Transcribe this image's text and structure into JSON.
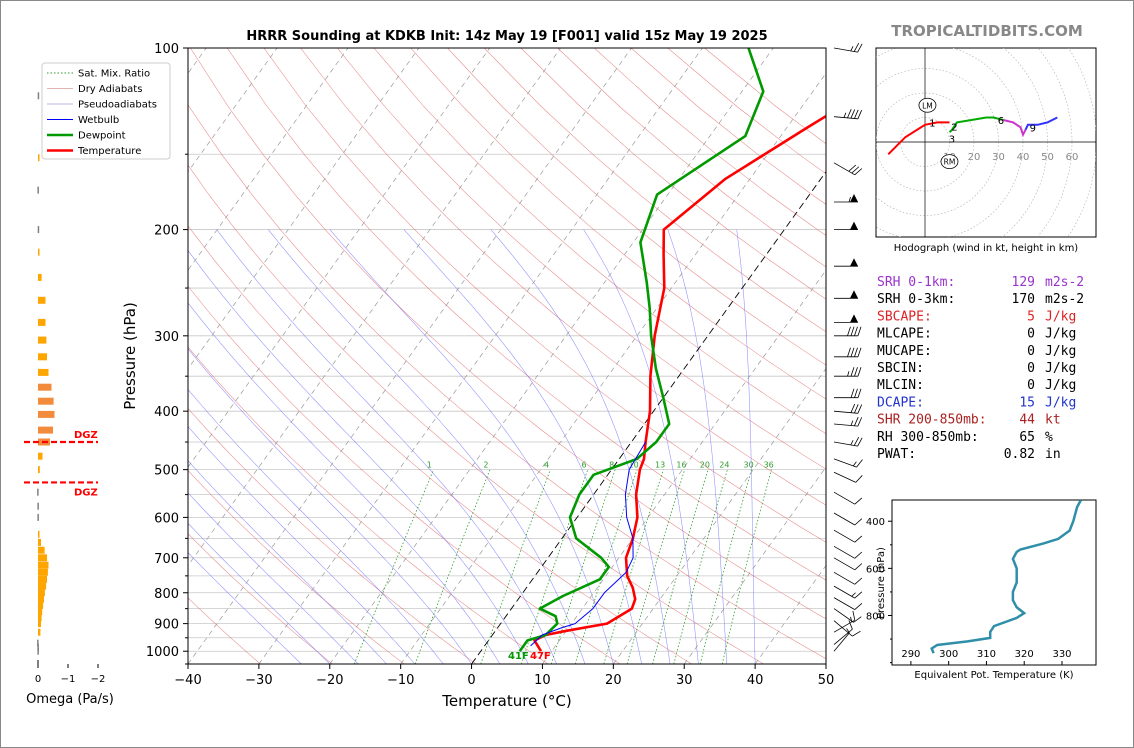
{
  "title": "HRRR Sounding at KDKB Init: 14z May 19 [F001] valid 15z May 19 2025",
  "watermark": "TROPICALTIDBITS.COM",
  "colors": {
    "temperature": "#ff0000",
    "dewpoint": "#009900",
    "wetbulb": "#0000ff",
    "dry_adiabat": "#e06060",
    "moist_adiabat": "#6060ff",
    "mixing_ratio": "#2e9e2e",
    "omega_up": "#ffa500",
    "omega_down": "#808080",
    "dgz": "#ff0000",
    "theta_e": "#2f8fa8",
    "srh": "#9933cc",
    "cape": "#dd2222",
    "dcape": "#2233cc",
    "shr": "#aa2222"
  },
  "chart_data": [
    {
      "type": "line",
      "name": "skew-t",
      "xlabel": "Temperature (°C)",
      "ylabel": "Pressure (hPa)",
      "xlim": [
        -40,
        50
      ],
      "ylim": [
        1050,
        100
      ],
      "y_scale": "log",
      "x_ticks": [
        "−40",
        "−30",
        "−20",
        "−10",
        "0",
        "10",
        "20",
        "30",
        "40",
        "50"
      ],
      "y_ticks": [
        "100",
        "200",
        "300",
        "400",
        "500",
        "600",
        "700",
        "800",
        "900",
        "1000"
      ],
      "legend": {
        "placement": "top-left",
        "entries": [
          "Sat. Mix. Ratio",
          "Dry Adiabats",
          "Pseudoadiabats",
          "Wetbulb",
          "Dewpoint",
          "Temperature"
        ]
      },
      "mixing_ratio_labels": [
        "1",
        "2",
        "4",
        "6",
        "8",
        "10",
        "13",
        "16",
        "20",
        "24",
        "30",
        "36"
      ],
      "surface_label": {
        "dewpoint": "41F",
        "temperature": "47F"
      },
      "series": [
        {
          "name": "Temperature",
          "points": [
            [
              8.5,
              1000
            ],
            [
              6.5,
              960
            ],
            [
              7.5,
              940
            ],
            [
              10,
              925
            ],
            [
              15,
              900
            ],
            [
              17,
              850
            ],
            [
              16.5,
              820
            ],
            [
              15,
              785
            ],
            [
              13,
              750
            ],
            [
              11,
              700
            ],
            [
              10,
              650
            ],
            [
              8.5,
              600
            ],
            [
              6,
              550
            ],
            [
              4,
              500
            ],
            [
              3.5,
              480
            ],
            [
              2,
              450
            ],
            [
              -0.5,
              400
            ],
            [
              -4,
              350
            ],
            [
              -7.5,
              300
            ],
            [
              -11,
              250
            ],
            [
              -14.5,
              220
            ],
            [
              -17,
              200
            ],
            [
              -13.5,
              165
            ],
            [
              -7,
              135
            ],
            [
              0,
              110
            ],
            [
              5,
              100
            ]
          ]
        },
        {
          "name": "Dewpoint",
          "points": [
            [
              5.5,
              1000
            ],
            [
              5.5,
              960
            ],
            [
              7.5,
              940
            ],
            [
              8,
              900
            ],
            [
              7,
              875
            ],
            [
              4,
              850
            ],
            [
              6,
              810
            ],
            [
              9.5,
              760
            ],
            [
              9.5,
              725
            ],
            [
              7.5,
              700
            ],
            [
              2,
              650
            ],
            [
              -1,
              600
            ],
            [
              -2,
              550
            ],
            [
              -2,
              510
            ],
            [
              2.5,
              480
            ],
            [
              3.5,
              450
            ],
            [
              3.5,
              420
            ],
            [
              0,
              380
            ],
            [
              -4,
              340
            ],
            [
              -8,
              300
            ],
            [
              -11,
              270
            ],
            [
              -14,
              245
            ],
            [
              -19,
              210
            ],
            [
              -21.5,
              175
            ],
            [
              -15,
              140
            ],
            [
              -17,
              118
            ],
            [
              -23.5,
              100
            ]
          ]
        },
        {
          "name": "Wetbulb",
          "points": [
            [
              6.5,
              980
            ],
            [
              7,
              940
            ],
            [
              9,
              915
            ],
            [
              10.5,
              900
            ],
            [
              11.5,
              850
            ],
            [
              11.5,
              800
            ],
            [
              12.5,
              740
            ],
            [
              12,
              700
            ],
            [
              10,
              650
            ],
            [
              7,
              600
            ],
            [
              4.5,
              550
            ],
            [
              2.5,
              500
            ],
            [
              2,
              450
            ]
          ]
        }
      ]
    },
    {
      "type": "bar",
      "name": "omega",
      "xlabel": "Omega (Pa/s)",
      "x_ticks": [
        "0",
        "−1",
        "−2"
      ],
      "xlim": [
        0.4,
        -2.3
      ],
      "dgz_label": "DGZ",
      "dgz_pressures": [
        450,
        525
      ],
      "profile": [
        [
          1000,
          0.02
        ],
        [
          985,
          0.02
        ],
        [
          970,
          0.03
        ],
        [
          930,
          -0.08
        ],
        [
          900,
          -0.1
        ],
        [
          880,
          -0.12
        ],
        [
          860,
          -0.14
        ],
        [
          840,
          -0.17
        ],
        [
          820,
          -0.2
        ],
        [
          800,
          -0.23
        ],
        [
          780,
          -0.27
        ],
        [
          760,
          -0.3
        ],
        [
          740,
          -0.33
        ],
        [
          720,
          -0.35
        ],
        [
          700,
          -0.3
        ],
        [
          680,
          -0.22
        ],
        [
          660,
          -0.1
        ],
        [
          640,
          -0.05
        ],
        [
          600,
          0.02
        ],
        [
          575,
          0.02
        ],
        [
          545,
          0.03
        ],
        [
          500,
          -0.06
        ],
        [
          475,
          -0.15
        ],
        [
          450,
          -0.4
        ],
        [
          430,
          -0.5
        ],
        [
          405,
          -0.55
        ],
        [
          385,
          -0.52
        ],
        [
          365,
          -0.45
        ],
        [
          345,
          -0.35
        ],
        [
          325,
          -0.3
        ],
        [
          305,
          -0.28
        ],
        [
          285,
          -0.25
        ],
        [
          262,
          -0.25
        ],
        [
          240,
          -0.12
        ],
        [
          218,
          -0.05
        ],
        [
          200,
          0.01
        ],
        [
          172,
          0.02
        ],
        [
          152,
          -0.03
        ],
        [
          120,
          0.01
        ]
      ]
    },
    {
      "type": "line",
      "name": "hodograph",
      "title": "Hodograph (wind in kt, height in km)",
      "ring_labels": [
        "10",
        "20",
        "30",
        "40",
        "50",
        "60"
      ],
      "markers": [
        "LM",
        "RM"
      ],
      "segments": [
        {
          "color": "#ff0000",
          "points": [
            [
              -15,
              -5
            ],
            [
              -12,
              -2
            ],
            [
              -8,
              2
            ],
            [
              0,
              7
            ],
            [
              5,
              8
            ],
            [
              10,
              8
            ]
          ]
        },
        {
          "color": "#00aa00",
          "points": [
            [
              10,
              4
            ],
            [
              11,
              5
            ],
            [
              13,
              8
            ],
            [
              19,
              9
            ],
            [
              25,
              10
            ],
            [
              28,
              10
            ],
            [
              32,
              9
            ]
          ]
        },
        {
          "color": "#cc33cc",
          "points": [
            [
              32,
              9
            ],
            [
              36,
              8
            ],
            [
              39,
              6
            ],
            [
              40,
              3
            ],
            [
              41,
              5
            ]
          ]
        },
        {
          "color": "#3333ff",
          "points": [
            [
              41,
              5
            ],
            [
              42,
              7
            ],
            [
              46,
              7
            ],
            [
              50,
              8
            ],
            [
              54,
              10
            ]
          ]
        }
      ],
      "labels": [
        {
          "t": "1",
          "u": 3,
          "v": 7.5
        },
        {
          "t": "2",
          "u": 12,
          "v": 6
        },
        {
          "t": "3",
          "u": 11,
          "v": 1
        },
        {
          "t": "6",
          "u": 31,
          "v": 8.5
        },
        {
          "t": "9",
          "u": 44,
          "v": 5.5
        }
      ],
      "lm": [
        1,
        15
      ],
      "rm": [
        10,
        -8
      ]
    },
    {
      "type": "line",
      "name": "theta-e",
      "xlabel": "Equivalent Pot. Temperature (K)",
      "ylabel": "Pressure (hPa)",
      "x_ticks": [
        "290",
        "300",
        "310",
        "320",
        "330"
      ],
      "y_ticks": [
        "400",
        "600",
        "800"
      ],
      "xlim": [
        285,
        339
      ],
      "ylim": [
        1010,
        310
      ],
      "points": [
        [
          296,
          960
        ],
        [
          295.5,
          940
        ],
        [
          297,
          925
        ],
        [
          305,
          910
        ],
        [
          311,
          895
        ],
        [
          311,
          870
        ],
        [
          312,
          845
        ],
        [
          318,
          810
        ],
        [
          320,
          790
        ],
        [
          318,
          765
        ],
        [
          317,
          735
        ],
        [
          317,
          700
        ],
        [
          318,
          660
        ],
        [
          318,
          600
        ],
        [
          317,
          560
        ],
        [
          318,
          530
        ],
        [
          319,
          520
        ],
        [
          325,
          495
        ],
        [
          329,
          475
        ],
        [
          332,
          440
        ],
        [
          333,
          400
        ],
        [
          333.5,
          370
        ],
        [
          334,
          340
        ],
        [
          335,
          310
        ]
      ]
    }
  ],
  "indices": [
    {
      "label": "SRH 0-1km:",
      "value": "129",
      "unit": "m2s-2",
      "color": "srh"
    },
    {
      "label": "SRH 0-3km:",
      "value": "170",
      "unit": "m2s-2",
      "color": "black"
    },
    {
      "label": "SBCAPE:",
      "value": "5",
      "unit": "J/kg",
      "color": "cape"
    },
    {
      "label": "MLCAPE:",
      "value": "0",
      "unit": "J/kg",
      "color": "black"
    },
    {
      "label": "MUCAPE:",
      "value": "0",
      "unit": "J/kg",
      "color": "black"
    },
    {
      "label": "SBCIN:",
      "value": "0",
      "unit": "J/kg",
      "color": "black"
    },
    {
      "label": "MLCIN:",
      "value": "0",
      "unit": "J/kg",
      "color": "black"
    },
    {
      "label": "DCAPE:",
      "value": "15",
      "unit": "J/kg",
      "color": "dcape"
    },
    {
      "label": "SHR 200-850mb:",
      "value": "44",
      "unit": "kt",
      "color": "shr"
    },
    {
      "label": "RH 300-850mb:",
      "value": "65",
      "unit": "%",
      "color": "black"
    },
    {
      "label": "PWAT:",
      "value": "0.82",
      "unit": "in",
      "color": "black"
    }
  ],
  "wind_barbs": [
    {
      "p": 100,
      "spd": 25,
      "dir": 280
    },
    {
      "p": 130,
      "spd": 45,
      "dir": 275
    },
    {
      "p": 155,
      "spd": 30,
      "dir": 300
    },
    {
      "p": 180,
      "spd": 55,
      "dir": 270
    },
    {
      "p": 200,
      "spd": 50,
      "dir": 270
    },
    {
      "p": 230,
      "spd": 50,
      "dir": 270
    },
    {
      "p": 260,
      "spd": 50,
      "dir": 270
    },
    {
      "p": 285,
      "spd": 50,
      "dir": 270
    },
    {
      "p": 300,
      "spd": 40,
      "dir": 270
    },
    {
      "p": 325,
      "spd": 40,
      "dir": 270
    },
    {
      "p": 350,
      "spd": 35,
      "dir": 270
    },
    {
      "p": 380,
      "spd": 30,
      "dir": 270
    },
    {
      "p": 400,
      "spd": 30,
      "dir": 275
    },
    {
      "p": 420,
      "spd": 25,
      "dir": 275
    },
    {
      "p": 450,
      "spd": 25,
      "dir": 280
    },
    {
      "p": 480,
      "spd": 15,
      "dir": 290
    },
    {
      "p": 505,
      "spd": 10,
      "dir": 295
    },
    {
      "p": 545,
      "spd": 10,
      "dir": 300
    },
    {
      "p": 590,
      "spd": 10,
      "dir": 300
    },
    {
      "p": 630,
      "spd": 10,
      "dir": 300
    },
    {
      "p": 670,
      "spd": 10,
      "dir": 300
    },
    {
      "p": 700,
      "spd": 10,
      "dir": 300
    },
    {
      "p": 740,
      "spd": 10,
      "dir": 300
    },
    {
      "p": 780,
      "spd": 15,
      "dir": 300
    },
    {
      "p": 815,
      "spd": 10,
      "dir": 300
    },
    {
      "p": 850,
      "spd": 10,
      "dir": 305
    },
    {
      "p": 890,
      "spd": 10,
      "dir": 310
    },
    {
      "p": 930,
      "spd": 15,
      "dir": 240
    },
    {
      "p": 975,
      "spd": 10,
      "dir": 230
    },
    {
      "p": 1000,
      "spd": 5,
      "dir": 220
    }
  ]
}
